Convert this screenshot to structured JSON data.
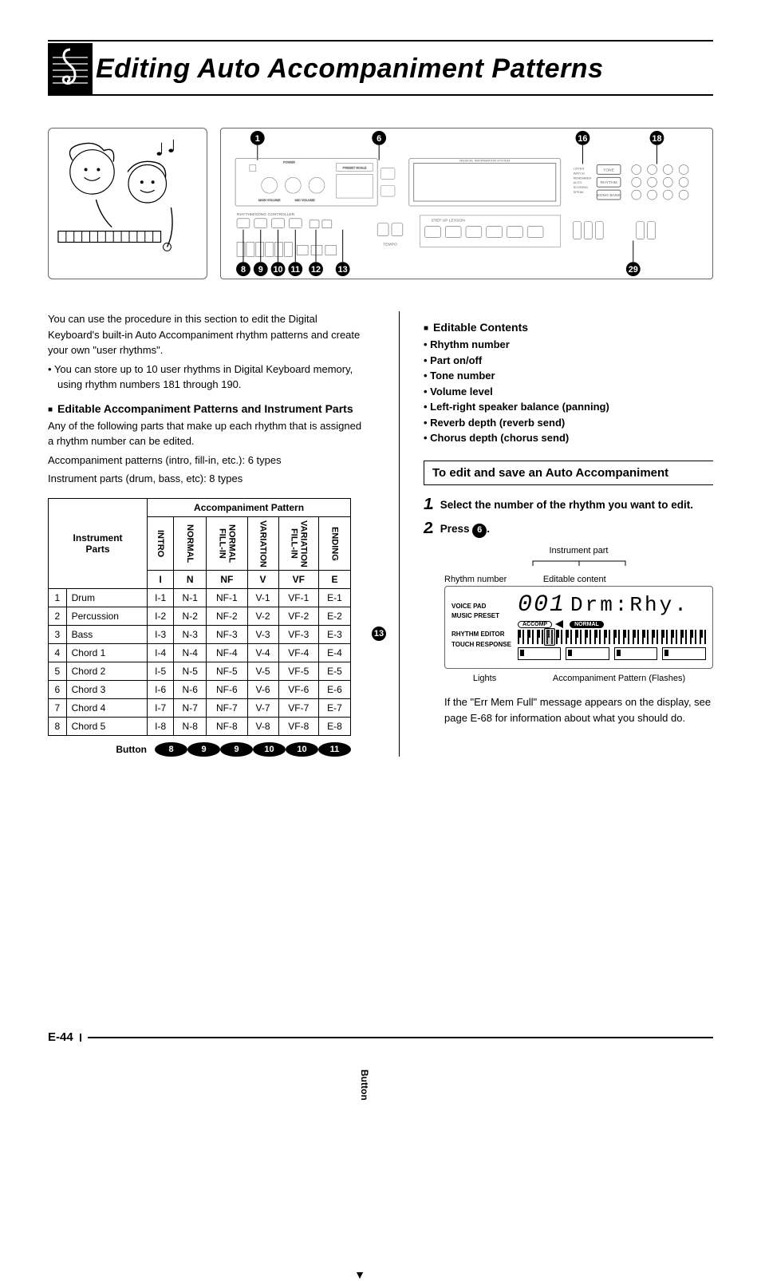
{
  "title": "Editing Auto Accompaniment Patterns",
  "intro": {
    "p1": "You can use the procedure in this section to edit the Digital Keyboard's built-in Auto Accompaniment rhythm patterns and create your own \"user rhythms\".",
    "b1": "You can store up to 10 user rhythms in Digital Keyboard memory, using rhythm numbers 181 through 190."
  },
  "leftHeading": "Editable Accompaniment Patterns and Instrument Parts",
  "leftBody1": "Any of the following parts that make up each rhythm that is assigned a rhythm number can be edited.",
  "leftBody2": "Accompaniment patterns (intro, fill-in, etc.): 6 types",
  "leftBody3": "Instrument parts (drum, bass, etc): 8 types",
  "accompTable": {
    "header_group": "Accompaniment Pattern",
    "instr_parts_label": "Instrument\nParts",
    "col_headers_vert": [
      "INTRO",
      "NORMAL",
      "NORMAL\nFILL-IN",
      "VARIATION",
      "VARIATION\nFILL-IN",
      "ENDING"
    ],
    "col_headers_code": [
      "I",
      "N",
      "NF",
      "V",
      "VF",
      "E"
    ],
    "rows": [
      {
        "n": "1",
        "name": "Drum",
        "cells": [
          "I-1",
          "N-1",
          "NF-1",
          "V-1",
          "VF-1",
          "E-1"
        ]
      },
      {
        "n": "2",
        "name": "Percussion",
        "cells": [
          "I-2",
          "N-2",
          "NF-2",
          "V-2",
          "VF-2",
          "E-2"
        ]
      },
      {
        "n": "3",
        "name": "Bass",
        "cells": [
          "I-3",
          "N-3",
          "NF-3",
          "V-3",
          "VF-3",
          "E-3"
        ]
      },
      {
        "n": "4",
        "name": "Chord 1",
        "cells": [
          "I-4",
          "N-4",
          "NF-4",
          "V-4",
          "VF-4",
          "E-4"
        ]
      },
      {
        "n": "5",
        "name": "Chord 2",
        "cells": [
          "I-5",
          "N-5",
          "NF-5",
          "V-5",
          "VF-5",
          "E-5"
        ]
      },
      {
        "n": "6",
        "name": "Chord 3",
        "cells": [
          "I-6",
          "N-6",
          "NF-6",
          "V-6",
          "VF-6",
          "E-6"
        ]
      },
      {
        "n": "7",
        "name": "Chord 4",
        "cells": [
          "I-7",
          "N-7",
          "NF-7",
          "V-7",
          "VF-7",
          "E-7"
        ]
      },
      {
        "n": "8",
        "name": "Chord 5",
        "cells": [
          "I-8",
          "N-8",
          "NF-8",
          "V-8",
          "VF-8",
          "E-8"
        ]
      }
    ],
    "button_row_label": "Button",
    "button_row_refs": [
      "8",
      "9",
      "9",
      "10",
      "10",
      "11"
    ],
    "side_label": "Button",
    "side_ref": "13"
  },
  "rightHeading": "Editable Contents",
  "rightBullets": [
    "Rhythm number",
    "Part on/off",
    "Tone number",
    "Volume level",
    "Left-right speaker balance (panning)",
    "Reverb depth (reverb send)",
    "Chorus depth (chorus send)"
  ],
  "procTitle": "To edit and save an Auto Accompaniment",
  "steps": {
    "s1": "Select the number of the rhythm you want to edit.",
    "s2_prefix": "Press ",
    "s2_ref": "6",
    "s2_suffix": "."
  },
  "lcd": {
    "top_center": "Instrument part",
    "top_left": "Rhythm number",
    "top_right": "Editable content",
    "left_labels": [
      "VOICE PAD",
      "MUSIC PRESET",
      "",
      "RHYTHM EDITOR",
      "TOUCH RESPONSE"
    ],
    "seg": "001",
    "text": "Drm:Rhy.",
    "pill1": "ACCOMP",
    "pill2": "NORMAL",
    "bottom_left": "Lights",
    "bottom_right": "Accompaniment Pattern (Flashes)"
  },
  "footnote": "If the \"Err Mem Full\" message appears on the display, see page E-68 for information about what you should do.",
  "diagramRefs": {
    "top": [
      "1",
      "6",
      "16",
      "18"
    ],
    "bottom": [
      "8",
      "9",
      "10",
      "11",
      "12",
      "13",
      "29"
    ]
  },
  "pageNum": "E-44",
  "colors": {
    "text": "#000000",
    "bg": "#ffffff",
    "border": "#000000",
    "diagram_border": "#666666"
  }
}
